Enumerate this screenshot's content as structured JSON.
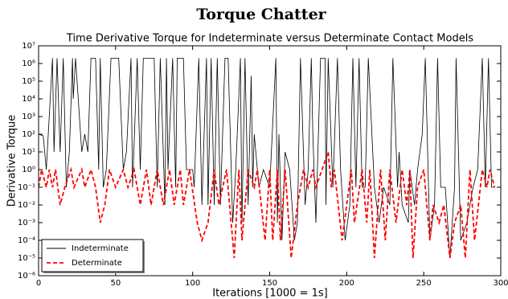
{
  "chart_data": {
    "type": "line",
    "title": "Torque Chatter",
    "subtitle": "Time Derivative Torque for Indeterminate versus Determinate Contact Models",
    "x_label": "Iterations [1000 = 1s]",
    "y_label": "Derivative Torque",
    "yscale": "log",
    "xlim": [
      0,
      300
    ],
    "ylim": [
      1e-06,
      10000000.0
    ],
    "xticks": [
      0,
      50,
      100,
      150,
      200,
      250,
      300
    ],
    "yticks": [
      {
        "value": 1e-06,
        "label": "10⁻⁶"
      },
      {
        "value": 1e-05,
        "label": "10⁻⁵"
      },
      {
        "value": 0.0001,
        "label": "10⁻⁴"
      },
      {
        "value": 0.001,
        "label": "10⁻³"
      },
      {
        "value": 0.01,
        "label": "10⁻²"
      },
      {
        "value": 0.1,
        "label": "10⁻¹"
      },
      {
        "value": 1,
        "label": "10⁰"
      },
      {
        "value": 10,
        "label": "10¹"
      },
      {
        "value": 100,
        "label": "10²"
      },
      {
        "value": 1000,
        "label": "10³"
      },
      {
        "value": 10000,
        "label": "10⁴"
      },
      {
        "value": 100000,
        "label": "10⁵"
      },
      {
        "value": 1000000,
        "label": "10⁶"
      },
      {
        "value": 10000000,
        "label": "10⁷"
      }
    ],
    "grid": false,
    "legend": "lower left",
    "series": [
      {
        "name": "Indeterminate",
        "color": "#000000",
        "dash": false,
        "x": [
          0,
          3,
          5,
          9,
          10,
          12,
          14,
          16,
          18,
          20,
          22,
          22.5,
          24,
          28,
          30,
          32,
          34,
          37,
          39,
          40,
          42,
          44,
          47,
          52,
          55,
          57,
          60,
          61,
          64,
          66,
          68,
          75,
          77,
          79,
          82,
          83,
          84,
          87,
          89,
          90,
          94,
          96,
          100,
          101,
          104,
          106,
          109,
          110,
          112,
          114,
          116,
          118,
          121,
          123,
          126,
          128,
          131,
          132,
          134,
          136,
          138,
          139,
          140,
          143,
          146,
          150,
          154,
          155,
          156,
          158,
          160,
          163,
          166,
          168,
          170,
          173,
          175,
          177,
          178,
          180,
          183,
          186,
          186.5,
          188,
          191,
          194,
          196,
          199,
          202,
          204,
          206,
          208,
          210,
          212,
          214,
          218,
          221,
          224,
          228,
          230,
          233,
          234,
          236,
          240,
          241,
          244,
          246,
          249,
          251,
          254,
          257,
          259,
          261,
          264,
          267,
          270,
          271,
          274,
          278,
          282,
          285,
          288,
          290,
          292,
          294,
          296
        ],
        "values": [
          100,
          80,
          1,
          2000000.0,
          10,
          2000000.0,
          10,
          2000000.0,
          0.1,
          10,
          2000000.0,
          10000.0,
          2000000.0,
          10,
          100,
          10,
          2000000.0,
          2000000.0,
          1,
          2000000.0,
          0.1,
          1,
          2000000.0,
          2000000.0,
          1,
          10,
          2000000.0,
          0.1,
          2000000.0,
          1,
          2000000.0,
          2000000.0,
          0.1,
          2000000.0,
          0.01,
          2000000.0,
          1,
          2000000.0,
          0.1,
          2000000.0,
          2000000.0,
          1,
          1,
          0.1,
          2000000.0,
          0.01,
          2000000.0,
          0.01,
          2000000.0,
          0.01,
          2000000.0,
          0.01,
          2000000.0,
          2000000.0,
          0.001,
          1,
          2000000.0,
          0.001,
          2000000.0,
          0.01,
          200000.0,
          0.1,
          100,
          0.1,
          1,
          0.1,
          2000000.0,
          0.001,
          100,
          0.0001,
          10,
          1,
          0.0001,
          0.001,
          2000000.0,
          0.01,
          1,
          2000000.0,
          100,
          0.001,
          2000000.0,
          2000000.0,
          0.01,
          2000000.0,
          0.1,
          2000000.0,
          1,
          0.0001,
          0.01,
          2000000.0,
          0.1,
          2000000.0,
          0.1,
          0.1,
          2000000.0,
          0.1,
          0.001,
          0.1,
          0.01,
          2000000.0,
          0.1,
          10,
          0.01,
          0.001,
          1,
          0.01,
          1,
          100,
          2000000.0,
          0.0001,
          0.01,
          2000000.0,
          0.1,
          0.1,
          1e-05,
          0.1,
          2000000.0,
          0.0001,
          0.001,
          0.1,
          1,
          2000000.0,
          0.1,
          2000000.0,
          0.1,
          0.1
        ]
      },
      {
        "name": "Determinate",
        "color": "#ff0000",
        "dash": true,
        "x": [
          0,
          2,
          5,
          7,
          9,
          11,
          14,
          17,
          21,
          23,
          28,
          30,
          34,
          37,
          40,
          43,
          46,
          50,
          55,
          58,
          62,
          66,
          70,
          73,
          77,
          81,
          85,
          88,
          92,
          94,
          98,
          103,
          106,
          110,
          114,
          117,
          122,
          127,
          130,
          132,
          136,
          140,
          142,
          147,
          150,
          152,
          155,
          157,
          160,
          164,
          168,
          172,
          175,
          178,
          180,
          184,
          188,
          190,
          192,
          197,
          200,
          203,
          205,
          210,
          213,
          215,
          218,
          222,
          225,
          228,
          232,
          236,
          239,
          241,
          243,
          246,
          250,
          254,
          256,
          260,
          263,
          267,
          270,
          274,
          277,
          280,
          283,
          288,
          291,
          293,
          296
        ],
        "values": [
          0.1,
          1,
          0.1,
          1,
          0.1,
          1,
          0.01,
          0.1,
          1,
          0.1,
          1,
          0.1,
          1,
          0.1,
          0.001,
          0.01,
          1,
          0.1,
          1,
          0.1,
          1,
          0.01,
          1,
          0.01,
          1,
          0.01,
          1,
          0.01,
          1,
          0.01,
          1,
          0.001,
          0.0001,
          0.001,
          1,
          0.01,
          1,
          1e-05,
          1,
          0.0001,
          1,
          0.1,
          1,
          0.0001,
          1,
          0.0001,
          1,
          0.0001,
          1,
          1e-05,
          0.01,
          1,
          0.1,
          1,
          0.1,
          1,
          10,
          0.1,
          1,
          0.0001,
          0.01,
          1,
          0.001,
          1,
          0.001,
          1,
          1e-05,
          1,
          0.0001,
          1,
          0.001,
          1,
          0.01,
          1,
          1e-05,
          0.1,
          1,
          0.0001,
          0.01,
          0.001,
          0.01,
          1e-05,
          0.001,
          0.01,
          1e-05,
          1,
          0.0001,
          1,
          0.1,
          1,
          0.1
        ]
      }
    ]
  }
}
